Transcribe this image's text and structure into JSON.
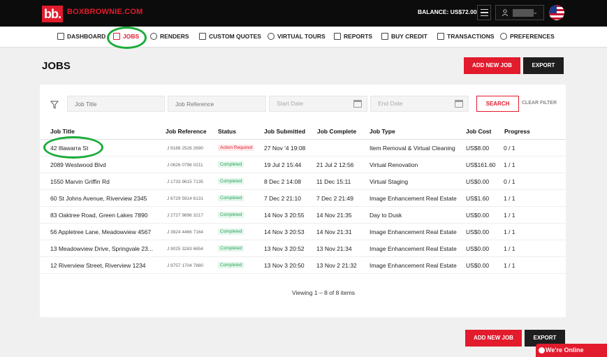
{
  "header": {
    "brand": "BOXBROWNIE.COM",
    "logo_text": "bb.",
    "balance": "BALANCE: US$72.00"
  },
  "nav": {
    "items": [
      {
        "label": "DASHBOARD",
        "icon": "dashboard-icon"
      },
      {
        "label": "JOBS",
        "icon": "jobs-icon"
      },
      {
        "label": "RENDERS",
        "icon": "renders-icon"
      },
      {
        "label": "CUSTOM QUOTES",
        "icon": "quotes-icon"
      },
      {
        "label": "VIRTUAL TOURS",
        "icon": "tours-icon"
      },
      {
        "label": "REPORTS",
        "icon": "reports-icon"
      },
      {
        "label": "BUY CREDIT",
        "icon": "credit-icon"
      },
      {
        "label": "TRANSACTIONS",
        "icon": "transactions-icon"
      },
      {
        "label": "PREFERENCES",
        "icon": "preferences-icon"
      }
    ],
    "active": "JOBS"
  },
  "page": {
    "title": "JOBS",
    "add_new_job": "ADD NEW JOB",
    "export": "EXPORT"
  },
  "filters": {
    "job_title_placeholder": "Job Title",
    "job_reference_placeholder": "Job Reference",
    "start_date_placeholder": "Start Date",
    "end_date_placeholder": "End Date",
    "search": "SEARCH",
    "clear": "CLEAR FILTER"
  },
  "table": {
    "columns": [
      "Job Title",
      "Job Reference",
      "Status",
      "Job Submitted",
      "Job Complete",
      "Job Type",
      "Job Cost",
      "Progress"
    ],
    "rows": [
      {
        "title": "42 Illawarra St",
        "ref": "J 9188 2526 2690",
        "status": "Action Required",
        "submitted": "27 Nov '4 19:08",
        "complete": "",
        "type": "Item Removal & Virtual Cleaning",
        "cost": "US$8.00",
        "progress": "0 / 1"
      },
      {
        "title": "2089 Westwood Blvd",
        "ref": "J 0626 0796 0211",
        "status": "Completed",
        "submitted": "19 Jul 2 15:44",
        "complete": "21 Jul 2 12:56",
        "type": "Virtual Renovation",
        "cost": "US$161.60",
        "progress": "1 / 1"
      },
      {
        "title": "1550 Marvin Griffin Rd",
        "ref": "J 1733 9615 7135",
        "status": "Completed",
        "submitted": "8 Dec 2 14:08",
        "complete": "11 Dec 15:11",
        "type": "Virtual Staging",
        "cost": "US$0.00",
        "progress": "0 / 1"
      },
      {
        "title": "60 St Johns Avenue, Riverview 2345",
        "ref": "J 6729 5914 6131",
        "status": "Completed",
        "submitted": "7 Dec 2 21:10",
        "complete": "7 Dec 2 21:49",
        "type": "Image Enhancement Real Estate",
        "cost": "US$1.60",
        "progress": "1 / 1"
      },
      {
        "title": "83 Oaktree Road, Green Lakes 7890",
        "ref": "J 2727 9896 3217",
        "status": "Completed",
        "submitted": "14 Nov 3 20:55",
        "complete": "14 Nov 21:35",
        "type": "Day to Dusk",
        "cost": "US$0.00",
        "progress": "1 / 1"
      },
      {
        "title": "56 Appletree Lane, Meadowview 4567",
        "ref": "J 3824 4466 7164",
        "status": "Completed",
        "submitted": "14 Nov 3 20:53",
        "complete": "14 Nov 21:31",
        "type": "Image Enhancement Real Estate",
        "cost": "US$0.00",
        "progress": "1 / 1"
      },
      {
        "title": "13 Meadowview Drive, Springvale 23...",
        "ref": "J 9025 3283 6654",
        "status": "Completed",
        "submitted": "13 Nov 3 20:52",
        "complete": "13 Nov 21:34",
        "type": "Image Enhancement Real Estate",
        "cost": "US$0.00",
        "progress": "1 / 1"
      },
      {
        "title": "12 Riverview Street, Riverview 1234",
        "ref": "J 9757 1704 7880",
        "status": "Completed",
        "submitted": "13 Nov 3 20:50",
        "complete": "13 Nov 2 21:32",
        "type": "Image Enhancement Real Estate",
        "cost": "US$0.00",
        "progress": "1 / 1"
      }
    ]
  },
  "footer": {
    "viewing": "Viewing 1 – 8 of 8 items",
    "online": "We're Online"
  },
  "colors": {
    "accent": "#e21b2d",
    "highlight_circle": "#1aac3a",
    "topbar": "#0c0c0c"
  }
}
